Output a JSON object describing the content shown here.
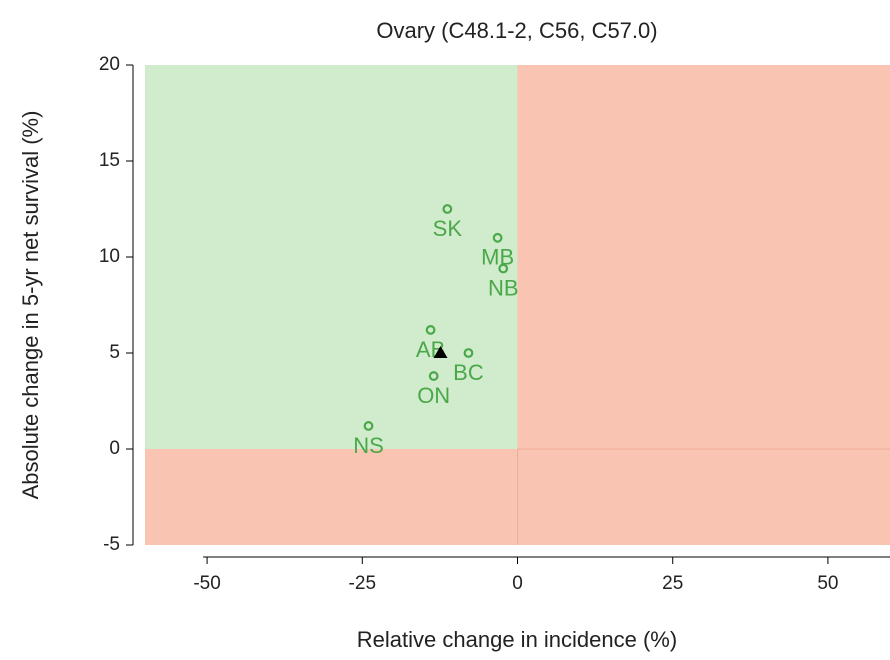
{
  "chart_data": {
    "type": "scatter",
    "title": "Ovary (C48.1-2, C56, C57.0)",
    "xlabel": "Relative change in incidence (%)",
    "ylabel": "Absolute change in 5-yr net survival (%)",
    "xlim": [
      -60,
      60
    ],
    "xticks": [
      -50,
      -25,
      0,
      25,
      50
    ],
    "ylim": [
      -5,
      20
    ],
    "yticks": [
      -5,
      0,
      5,
      10,
      15,
      20
    ],
    "favorable_color": "#d1ebcd",
    "unfavorable_color": "#f9c4b1",
    "series": [
      {
        "color": "#4aa84a",
        "marker": "circle",
        "x": [
          -11.3,
          -3.2,
          -2.3,
          -14.0,
          -7.9,
          -13.5,
          -24.0
        ],
        "values": [
          12.5,
          11.0,
          9.4,
          6.2,
          5.0,
          3.8,
          1.2
        ],
        "labels": [
          "SK",
          "MB",
          "NB",
          "AB",
          "BC",
          "ON",
          "NS"
        ]
      },
      {
        "color": "#000000",
        "marker": "triangle",
        "x": [
          -12.4
        ],
        "values": [
          5.0
        ]
      }
    ]
  }
}
